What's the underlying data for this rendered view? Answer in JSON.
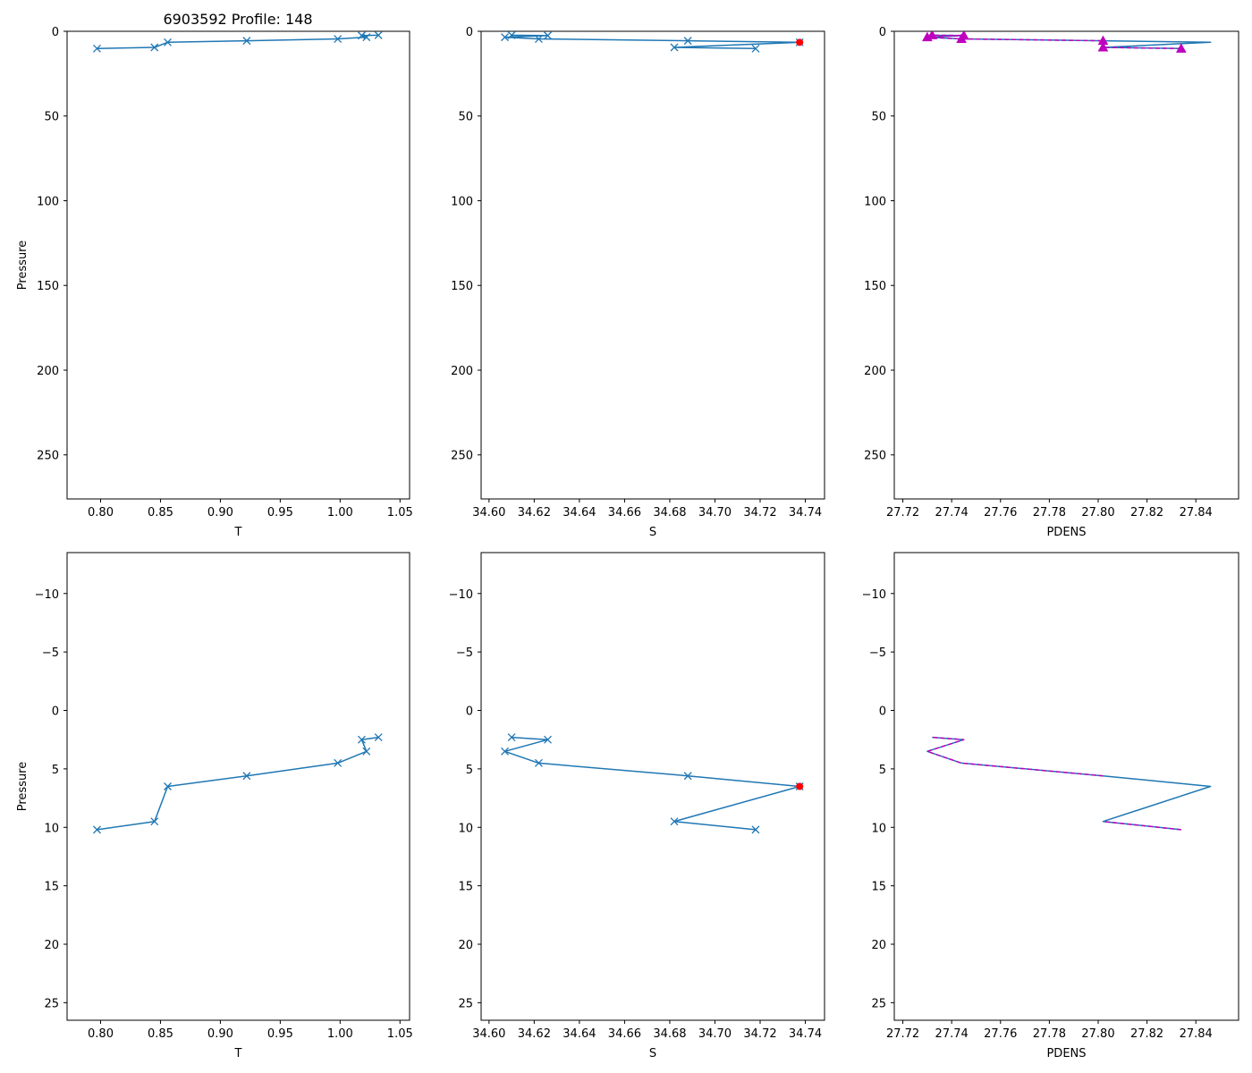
{
  "title": "6903592 Profile: 148",
  "colors": {
    "series": "#1f77b4",
    "density_overlay": "#bf00bf",
    "flag": "#ff0000",
    "axis": "#000000"
  },
  "chart_data": [
    {
      "type": "line",
      "panel": "top-left",
      "xlabel": "T",
      "ylabel": "Pressure",
      "xlim": [
        0.772,
        1.058
      ],
      "ylim": [
        276,
        0
      ],
      "xticks": [
        "0.80",
        "0.85",
        "0.90",
        "0.95",
        "1.00",
        "1.05"
      ],
      "yticks": [
        "0",
        "50",
        "100",
        "150",
        "200",
        "250"
      ],
      "series": [
        {
          "name": "T",
          "marker": "x",
          "points": [
            [
              0.797,
              10.2
            ],
            [
              0.845,
              9.5
            ],
            [
              0.856,
              6.5
            ],
            [
              0.922,
              5.6
            ],
            [
              0.998,
              4.5
            ],
            [
              1.022,
              3.5
            ],
            [
              1.018,
              2.5
            ],
            [
              1.032,
              2.3
            ]
          ]
        }
      ]
    },
    {
      "type": "line",
      "panel": "top-middle",
      "xlabel": "S",
      "ylabel": "",
      "xlim": [
        34.5965,
        34.7485
      ],
      "ylim": [
        276,
        0
      ],
      "xticks": [
        "34.60",
        "34.62",
        "34.64",
        "34.66",
        "34.68",
        "34.70",
        "34.72",
        "34.74"
      ],
      "yticks": [
        "0",
        "50",
        "100",
        "150",
        "200",
        "250"
      ],
      "series": [
        {
          "name": "S",
          "marker": "x",
          "points": [
            [
              34.718,
              10.2
            ],
            [
              34.682,
              9.5
            ],
            [
              34.7375,
              6.5
            ],
            [
              34.688,
              5.6
            ],
            [
              34.622,
              4.5
            ],
            [
              34.607,
              3.5
            ],
            [
              34.626,
              2.5
            ],
            [
              34.61,
              2.3
            ]
          ]
        }
      ],
      "flagged_points": [
        [
          34.7375,
          6.5
        ]
      ]
    },
    {
      "type": "line",
      "panel": "top-right",
      "xlabel": "PDENS",
      "ylabel": "",
      "xlim": [
        27.7165,
        27.8575
      ],
      "ylim": [
        276,
        0
      ],
      "xticks": [
        "27.72",
        "27.74",
        "27.76",
        "27.78",
        "27.80",
        "27.82",
        "27.84"
      ],
      "yticks": [
        "0",
        "50",
        "100",
        "150",
        "200",
        "250"
      ],
      "series": [
        {
          "name": "PDENS",
          "marker": "none",
          "points": [
            [
              27.834,
              10.2
            ],
            [
              27.802,
              9.5
            ],
            [
              27.846,
              6.5
            ],
            [
              27.802,
              5.6
            ],
            [
              27.744,
              4.5
            ],
            [
              27.73,
              3.5
            ],
            [
              27.745,
              2.5
            ],
            [
              27.732,
              2.3
            ]
          ]
        },
        {
          "name": "PDENS overlay",
          "marker": "triangle",
          "style": "dashed",
          "points": [
            [
              27.834,
              10.2
            ],
            [
              27.802,
              9.5
            ],
            [
              27.802,
              5.6
            ],
            [
              27.744,
              4.5
            ],
            [
              27.73,
              3.5
            ],
            [
              27.745,
              2.5
            ],
            [
              27.732,
              2.3
            ]
          ]
        }
      ]
    },
    {
      "type": "line",
      "panel": "bottom-left",
      "xlabel": "T",
      "ylabel": "Pressure",
      "xlim": [
        0.772,
        1.058
      ],
      "ylim": [
        26.5,
        -13.5
      ],
      "xticks": [
        "0.80",
        "0.85",
        "0.90",
        "0.95",
        "1.00",
        "1.05"
      ],
      "yticks": [
        "−10",
        "−5",
        "0",
        "5",
        "10",
        "15",
        "20",
        "25"
      ],
      "series": [
        {
          "name": "T",
          "marker": "x",
          "points": [
            [
              0.797,
              10.2
            ],
            [
              0.845,
              9.5
            ],
            [
              0.856,
              6.5
            ],
            [
              0.922,
              5.6
            ],
            [
              0.998,
              4.5
            ],
            [
              1.022,
              3.5
            ],
            [
              1.018,
              2.5
            ],
            [
              1.032,
              2.3
            ]
          ]
        }
      ]
    },
    {
      "type": "line",
      "panel": "bottom-middle",
      "xlabel": "S",
      "ylabel": "",
      "xlim": [
        34.5965,
        34.7485
      ],
      "ylim": [
        26.5,
        -13.5
      ],
      "xticks": [
        "34.60",
        "34.62",
        "34.64",
        "34.66",
        "34.68",
        "34.70",
        "34.72",
        "34.74"
      ],
      "yticks": [
        "−10",
        "−5",
        "0",
        "5",
        "10",
        "15",
        "20",
        "25"
      ],
      "series": [
        {
          "name": "S",
          "marker": "x",
          "points": [
            [
              34.718,
              10.2
            ],
            [
              34.682,
              9.5
            ],
            [
              34.7375,
              6.5
            ],
            [
              34.688,
              5.6
            ],
            [
              34.622,
              4.5
            ],
            [
              34.607,
              3.5
            ],
            [
              34.626,
              2.5
            ],
            [
              34.61,
              2.3
            ]
          ]
        }
      ],
      "flagged_points": [
        [
          34.7375,
          6.5
        ]
      ]
    },
    {
      "type": "line",
      "panel": "bottom-right",
      "xlabel": "PDENS",
      "ylabel": "",
      "xlim": [
        27.7165,
        27.8575
      ],
      "ylim": [
        26.5,
        -13.5
      ],
      "xticks": [
        "27.72",
        "27.74",
        "27.76",
        "27.78",
        "27.80",
        "27.82",
        "27.84"
      ],
      "yticks": [
        "−10",
        "−5",
        "0",
        "5",
        "10",
        "15",
        "20",
        "25"
      ],
      "series": [
        {
          "name": "PDENS",
          "marker": "none",
          "points": [
            [
              27.834,
              10.2
            ],
            [
              27.802,
              9.5
            ],
            [
              27.846,
              6.5
            ],
            [
              27.802,
              5.6
            ],
            [
              27.744,
              4.5
            ],
            [
              27.73,
              3.5
            ],
            [
              27.745,
              2.5
            ],
            [
              27.732,
              2.3
            ]
          ]
        },
        {
          "name": "PDENS overlay",
          "marker": "none",
          "style": "dashed",
          "points": [
            [
              27.834,
              10.2
            ],
            [
              27.802,
              9.5
            ],
            [
              null,
              null
            ],
            [
              27.802,
              5.6
            ],
            [
              27.744,
              4.5
            ],
            [
              27.73,
              3.5
            ],
            [
              27.745,
              2.5
            ],
            [
              27.732,
              2.3
            ]
          ]
        }
      ]
    }
  ]
}
